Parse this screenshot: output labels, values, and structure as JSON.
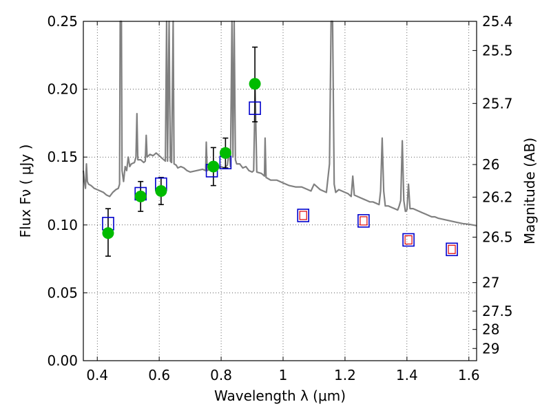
{
  "chart_data": {
    "type": "scatter",
    "xlabel": "Wavelength  λ (μm)",
    "ylabel": "Flux  Fν  ( μJy )",
    "ylabel_right": "Magnitude (AB)",
    "xlim": [
      0.355,
      1.625
    ],
    "ylim": [
      0.0,
      0.25
    ],
    "grid": true,
    "x_ticks": [
      {
        "value": 0.4,
        "label": "0.4"
      },
      {
        "value": 0.6,
        "label": "0.6"
      },
      {
        "value": 0.8,
        "label": "0.8"
      },
      {
        "value": 1.0,
        "label": "1"
      },
      {
        "value": 1.2,
        "label": "1.2"
      },
      {
        "value": 1.4,
        "label": "1.4"
      },
      {
        "value": 1.6,
        "label": "1.6"
      }
    ],
    "y_ticks": [
      {
        "value": 0.0,
        "label": "0.00"
      },
      {
        "value": 0.05,
        "label": "0.05"
      },
      {
        "value": 0.1,
        "label": "0.10"
      },
      {
        "value": 0.15,
        "label": "0.15"
      },
      {
        "value": 0.2,
        "label": "0.20"
      },
      {
        "value": 0.25,
        "label": "0.25"
      }
    ],
    "right_ticks": [
      {
        "flux": 0.25,
        "label": "25.4"
      },
      {
        "flux": 0.2285,
        "label": "25.5"
      },
      {
        "flux": 0.1895,
        "label": "25.7"
      },
      {
        "flux": 0.1445,
        "label": "26"
      },
      {
        "flux": 0.1205,
        "label": "26.2"
      },
      {
        "flux": 0.091,
        "label": "26.5"
      },
      {
        "flux": 0.0575,
        "label": "27"
      },
      {
        "flux": 0.0365,
        "label": "27.5"
      },
      {
        "flux": 0.023,
        "label": "28"
      },
      {
        "flux": 0.009,
        "label": "29"
      }
    ],
    "colors": {
      "model": "#808080",
      "observed": "#00bb00",
      "errorbar": "#000000",
      "synthetic_edge": "#0000cc",
      "predicted_edge": "#dd0000"
    },
    "series": [
      {
        "kind": "line",
        "points": [
          [
            0.355,
            0.14
          ],
          [
            0.358,
            0.133
          ],
          [
            0.362,
            0.127
          ],
          [
            0.365,
            0.145
          ],
          [
            0.368,
            0.132
          ],
          [
            0.372,
            0.13
          ],
          [
            0.38,
            0.129
          ],
          [
            0.39,
            0.127
          ],
          [
            0.4,
            0.126
          ],
          [
            0.41,
            0.125
          ],
          [
            0.42,
            0.124
          ],
          [
            0.43,
            0.122
          ],
          [
            0.44,
            0.121
          ],
          [
            0.45,
            0.124
          ],
          [
            0.46,
            0.126
          ],
          [
            0.468,
            0.127
          ],
          [
            0.472,
            0.13
          ],
          [
            0.474,
            0.25
          ],
          [
            0.478,
            0.25
          ],
          [
            0.48,
            0.14
          ],
          [
            0.485,
            0.132
          ],
          [
            0.49,
            0.143
          ],
          [
            0.495,
            0.14
          ],
          [
            0.5,
            0.15
          ],
          [
            0.505,
            0.143
          ],
          [
            0.51,
            0.145
          ],
          [
            0.52,
            0.146
          ],
          [
            0.525,
            0.15
          ],
          [
            0.528,
            0.182
          ],
          [
            0.531,
            0.148
          ],
          [
            0.54,
            0.148
          ],
          [
            0.55,
            0.146
          ],
          [
            0.555,
            0.147
          ],
          [
            0.558,
            0.166
          ],
          [
            0.561,
            0.15
          ],
          [
            0.57,
            0.152
          ],
          [
            0.58,
            0.151
          ],
          [
            0.59,
            0.153
          ],
          [
            0.6,
            0.151
          ],
          [
            0.61,
            0.149
          ],
          [
            0.62,
            0.147
          ],
          [
            0.624,
            0.25
          ],
          [
            0.627,
            0.147
          ],
          [
            0.632,
            0.25
          ],
          [
            0.636,
            0.147
          ],
          [
            0.64,
            0.146
          ],
          [
            0.645,
            0.25
          ],
          [
            0.648,
            0.145
          ],
          [
            0.655,
            0.144
          ],
          [
            0.66,
            0.142
          ],
          [
            0.67,
            0.143
          ],
          [
            0.68,
            0.142
          ],
          [
            0.69,
            0.14
          ],
          [
            0.7,
            0.139
          ],
          [
            0.72,
            0.14
          ],
          [
            0.74,
            0.141
          ],
          [
            0.75,
            0.14
          ],
          [
            0.752,
            0.161
          ],
          [
            0.755,
            0.14
          ],
          [
            0.77,
            0.142
          ],
          [
            0.78,
            0.141
          ],
          [
            0.79,
            0.142
          ],
          [
            0.8,
            0.143
          ],
          [
            0.81,
            0.142
          ],
          [
            0.82,
            0.144
          ],
          [
            0.826,
            0.155
          ],
          [
            0.83,
            0.143
          ],
          [
            0.835,
            0.25
          ],
          [
            0.838,
            0.15
          ],
          [
            0.842,
            0.25
          ],
          [
            0.846,
            0.148
          ],
          [
            0.85,
            0.145
          ],
          [
            0.86,
            0.145
          ],
          [
            0.87,
            0.142
          ],
          [
            0.88,
            0.143
          ],
          [
            0.89,
            0.14
          ],
          [
            0.9,
            0.139
          ],
          [
            0.905,
            0.14
          ],
          [
            0.91,
            0.2
          ],
          [
            0.915,
            0.139
          ],
          [
            0.93,
            0.138
          ],
          [
            0.94,
            0.136
          ],
          [
            0.942,
            0.164
          ],
          [
            0.945,
            0.135
          ],
          [
            0.96,
            0.133
          ],
          [
            0.98,
            0.133
          ],
          [
            1.0,
            0.131
          ],
          [
            1.02,
            0.129
          ],
          [
            1.04,
            0.128
          ],
          [
            1.06,
            0.128
          ],
          [
            1.08,
            0.126
          ],
          [
            1.09,
            0.125
          ],
          [
            1.1,
            0.13
          ],
          [
            1.11,
            0.128
          ],
          [
            1.12,
            0.126
          ],
          [
            1.13,
            0.125
          ],
          [
            1.14,
            0.124
          ],
          [
            1.15,
            0.145
          ],
          [
            1.155,
            0.25
          ],
          [
            1.16,
            0.25
          ],
          [
            1.165,
            0.13
          ],
          [
            1.17,
            0.124
          ],
          [
            1.18,
            0.126
          ],
          [
            1.19,
            0.125
          ],
          [
            1.2,
            0.124
          ],
          [
            1.21,
            0.123
          ],
          [
            1.22,
            0.121
          ],
          [
            1.225,
            0.136
          ],
          [
            1.23,
            0.122
          ],
          [
            1.24,
            0.121
          ],
          [
            1.25,
            0.12
          ],
          [
            1.26,
            0.119
          ],
          [
            1.27,
            0.118
          ],
          [
            1.28,
            0.117
          ],
          [
            1.29,
            0.117
          ],
          [
            1.3,
            0.116
          ],
          [
            1.31,
            0.115
          ],
          [
            1.315,
            0.125
          ],
          [
            1.32,
            0.164
          ],
          [
            1.325,
            0.125
          ],
          [
            1.33,
            0.114
          ],
          [
            1.34,
            0.114
          ],
          [
            1.35,
            0.113
          ],
          [
            1.36,
            0.112
          ],
          [
            1.37,
            0.111
          ],
          [
            1.375,
            0.114
          ],
          [
            1.38,
            0.118
          ],
          [
            1.385,
            0.162
          ],
          [
            1.39,
            0.118
          ],
          [
            1.395,
            0.11
          ],
          [
            1.4,
            0.111
          ],
          [
            1.405,
            0.13
          ],
          [
            1.41,
            0.112
          ],
          [
            1.42,
            0.112
          ],
          [
            1.43,
            0.111
          ],
          [
            1.44,
            0.11
          ],
          [
            1.45,
            0.109
          ],
          [
            1.46,
            0.108
          ],
          [
            1.47,
            0.107
          ],
          [
            1.48,
            0.106
          ],
          [
            1.49,
            0.106
          ],
          [
            1.5,
            0.105
          ],
          [
            1.52,
            0.104
          ],
          [
            1.54,
            0.103
          ],
          [
            1.56,
            0.102
          ],
          [
            1.58,
            0.101
          ],
          [
            1.6,
            0.1005
          ],
          [
            1.625,
            0.0995
          ]
        ]
      },
      {
        "kind": "errorbar_points",
        "points": [
          {
            "x": 0.435,
            "y": 0.094,
            "err_lo": 0.017,
            "err_hi": 0.018
          },
          {
            "x": 0.54,
            "y": 0.121,
            "err_lo": 0.011,
            "err_hi": 0.011
          },
          {
            "x": 0.606,
            "y": 0.125,
            "err_lo": 0.01,
            "err_hi": 0.01
          },
          {
            "x": 0.775,
            "y": 0.143,
            "err_lo": 0.014,
            "err_hi": 0.014
          },
          {
            "x": 0.814,
            "y": 0.153,
            "err_lo": 0.011,
            "err_hi": 0.011
          },
          {
            "x": 0.909,
            "y": 0.204,
            "err_lo": 0.028,
            "err_hi": 0.027
          }
        ]
      },
      {
        "kind": "synthetic_squares",
        "points": [
          {
            "x": 0.435,
            "y": 0.101
          },
          {
            "x": 0.54,
            "y": 0.123
          },
          {
            "x": 0.606,
            "y": 0.13
          },
          {
            "x": 0.77,
            "y": 0.14
          },
          {
            "x": 0.814,
            "y": 0.146
          },
          {
            "x": 0.909,
            "y": 0.186
          }
        ]
      },
      {
        "kind": "predicted_squares",
        "points": [
          {
            "x": 1.065,
            "y": 0.107
          },
          {
            "x": 1.26,
            "y": 0.103
          },
          {
            "x": 1.405,
            "y": 0.089
          },
          {
            "x": 1.545,
            "y": 0.082
          }
        ]
      }
    ]
  }
}
